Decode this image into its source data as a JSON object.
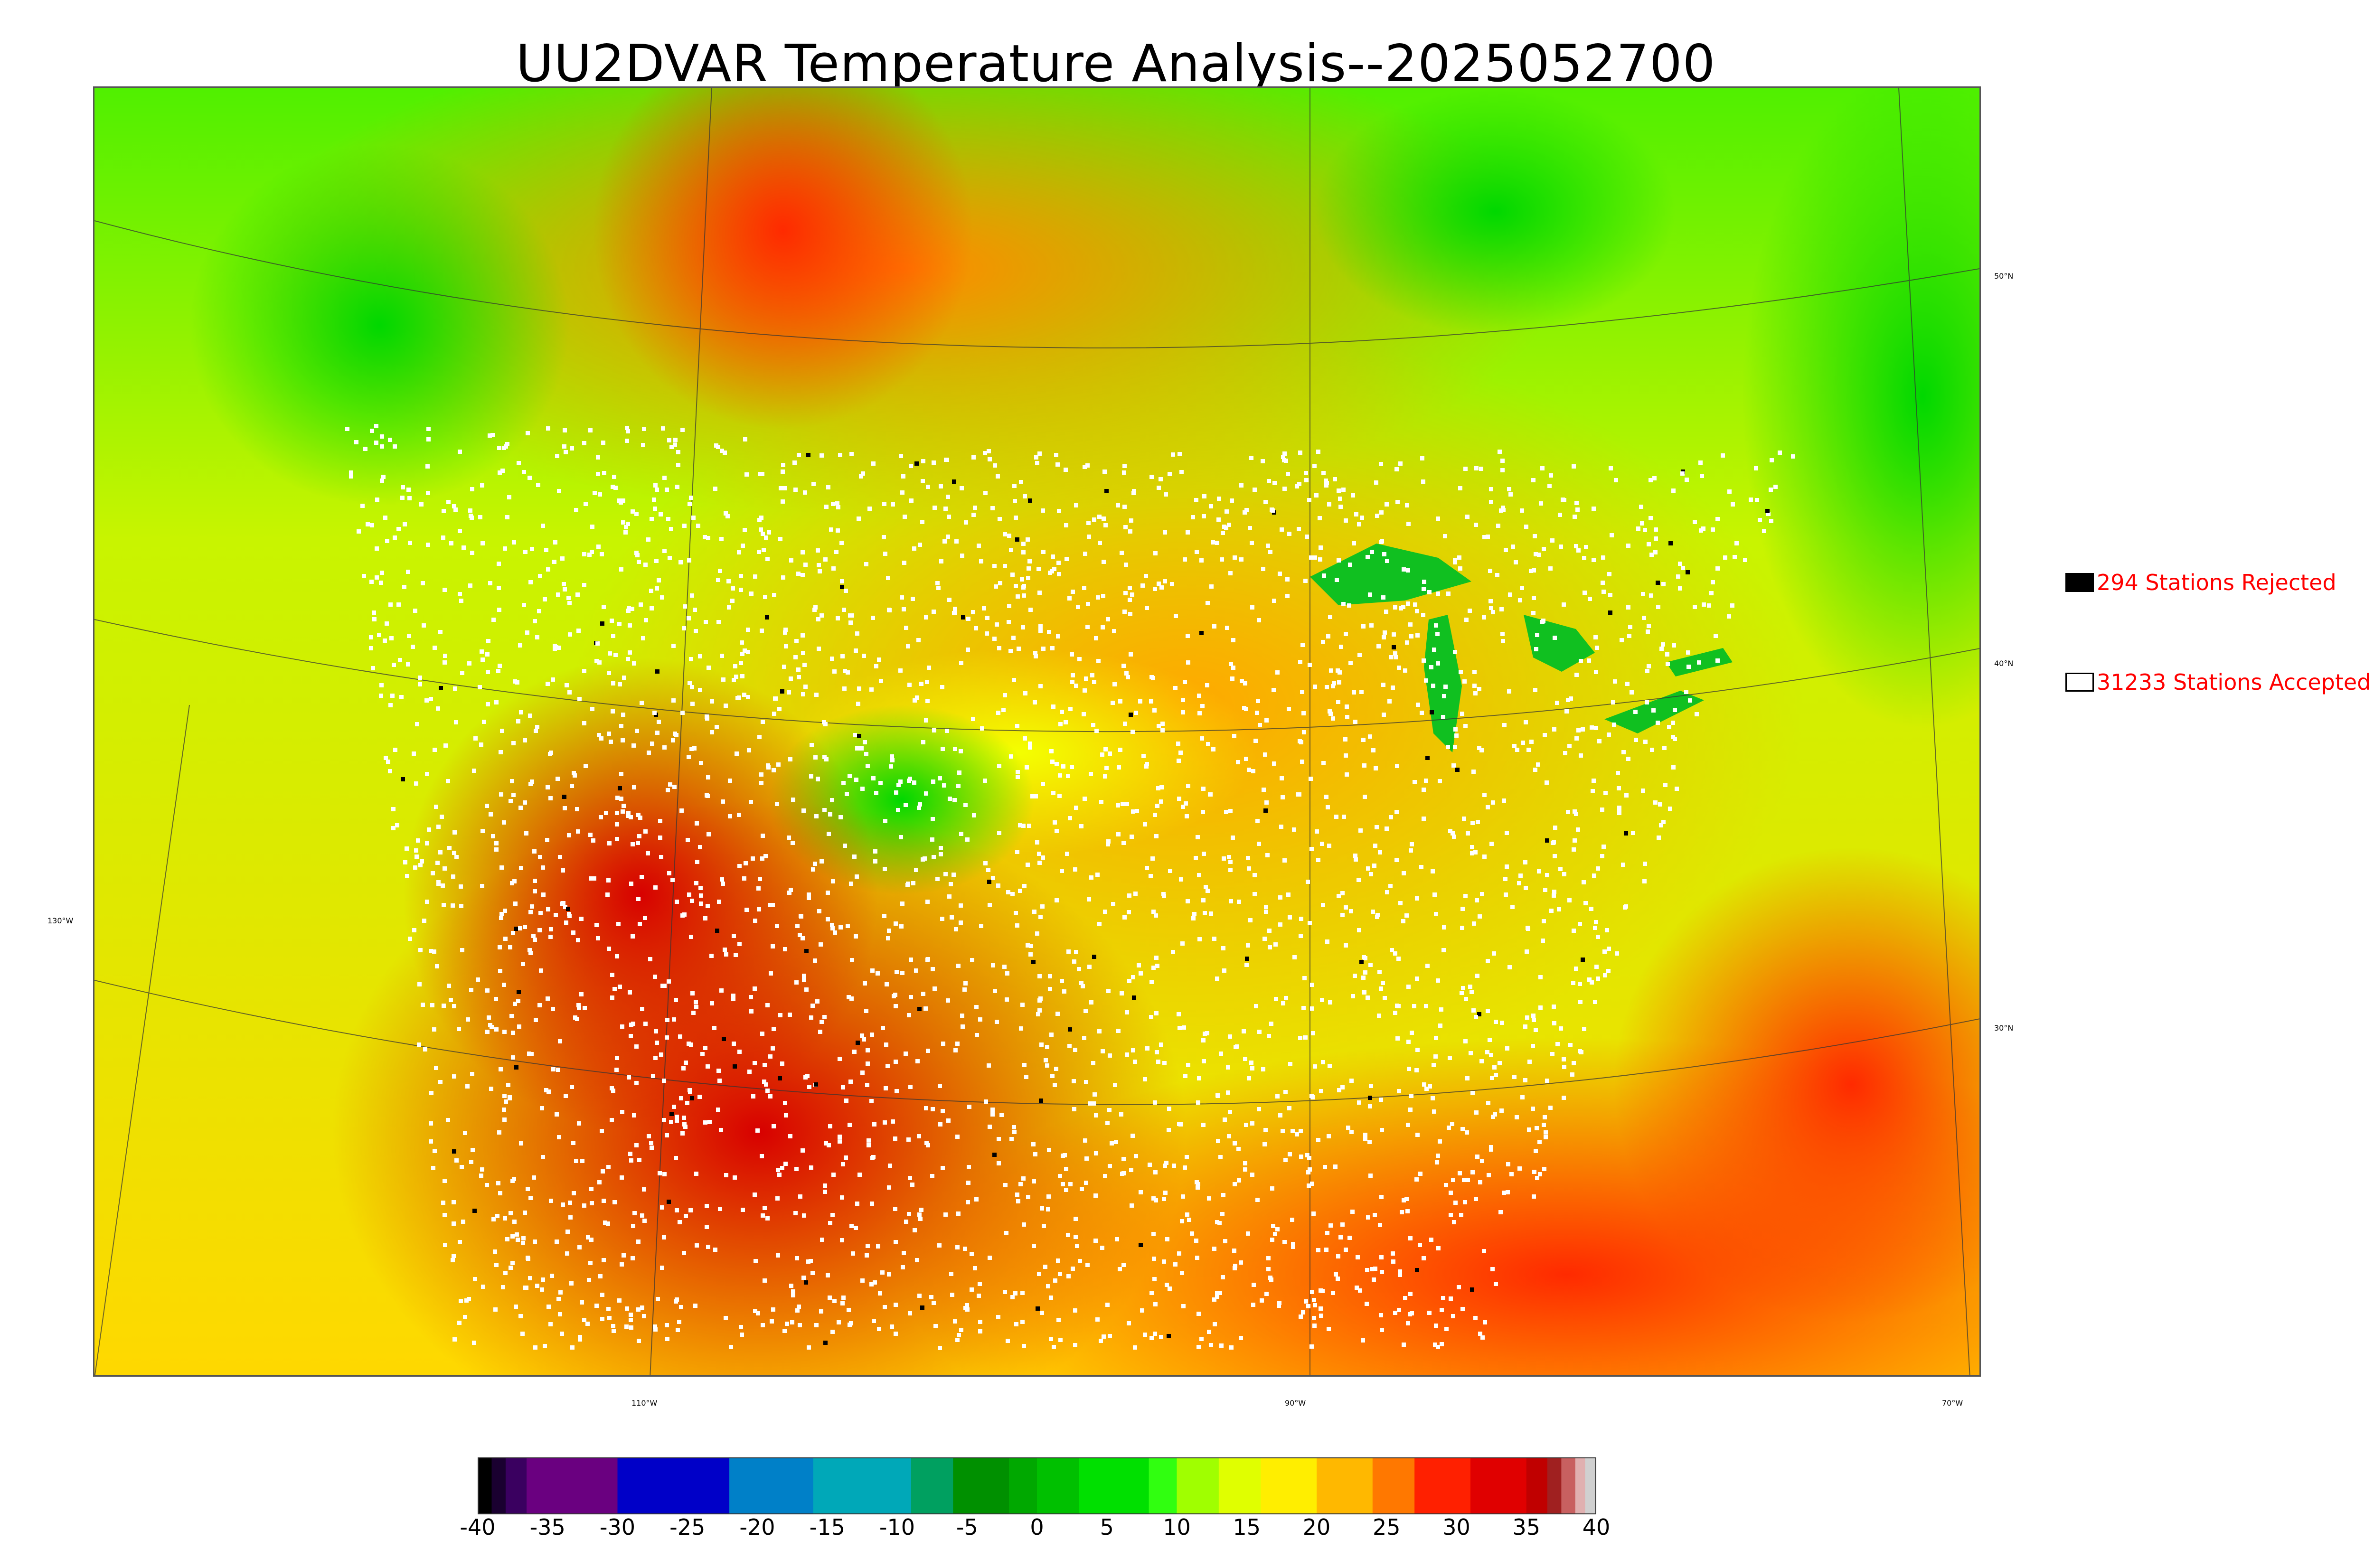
{
  "title": "UU2DVAR Temperature Analysis--2025052700",
  "legend": {
    "rejected": {
      "label": "294 Stations Rejected",
      "swatch": "#000000"
    },
    "accepted": {
      "label": "31233 Stations Accepted",
      "swatch": "#ffffff"
    }
  },
  "latitude_labels": [
    "50°N",
    "40°N",
    "30°N"
  ],
  "longitude_labels": [
    "130°W",
    "110°W",
    "90°W",
    "70°W"
  ],
  "colorbar": {
    "tick_labels": [
      "-40",
      "-35",
      "-30",
      "-25",
      "-20",
      "-15",
      "-10",
      "-5",
      "0",
      "5",
      "10",
      "15",
      "20",
      "25",
      "30",
      "35",
      "40"
    ],
    "range": [
      -40,
      40
    ],
    "bands": [
      {
        "from": -40,
        "to": -39,
        "color": "#000000"
      },
      {
        "from": -39,
        "to": -38,
        "color": "#1a0030"
      },
      {
        "from": -38,
        "to": -36.5,
        "color": "#3a0060"
      },
      {
        "from": -36.5,
        "to": -30,
        "color": "#6a0080"
      },
      {
        "from": -30,
        "to": -22,
        "color": "#0000c8"
      },
      {
        "from": -22,
        "to": -16,
        "color": "#0080c8"
      },
      {
        "from": -16,
        "to": -9,
        "color": "#00a8b8"
      },
      {
        "from": -9,
        "to": -6,
        "color": "#00a060"
      },
      {
        "from": -6,
        "to": -2,
        "color": "#009000"
      },
      {
        "from": -2,
        "to": 0,
        "color": "#00a800"
      },
      {
        "from": 0,
        "to": 3,
        "color": "#00c000"
      },
      {
        "from": 3,
        "to": 8,
        "color": "#00e000"
      },
      {
        "from": 8,
        "to": 10,
        "color": "#30ff10"
      },
      {
        "from": 10,
        "to": 13,
        "color": "#a0ff00"
      },
      {
        "from": 13,
        "to": 16,
        "color": "#e0ff00"
      },
      {
        "from": 16,
        "to": 20,
        "color": "#ffee00"
      },
      {
        "from": 20,
        "to": 24,
        "color": "#ffb800"
      },
      {
        "from": 24,
        "to": 27,
        "color": "#ff7800"
      },
      {
        "from": 27,
        "to": 31,
        "color": "#ff2000"
      },
      {
        "from": 31,
        "to": 35,
        "color": "#e00000"
      },
      {
        "from": 35,
        "to": 36.5,
        "color": "#c00000"
      },
      {
        "from": 36.5,
        "to": 37.5,
        "color": "#a02020"
      },
      {
        "from": 37.5,
        "to": 38.5,
        "color": "#c86060"
      },
      {
        "from": 38.5,
        "to": 39.2,
        "color": "#e0b0b0"
      },
      {
        "from": 39.2,
        "to": 40,
        "color": "#d0d0d0"
      }
    ]
  },
  "colors": {
    "ocean_north": "#e6f200",
    "ocean_south": "#ff3000",
    "canada_warm": "#ff9000",
    "hot_southwest": "#d40000",
    "cool_green": "#00d000",
    "lakes": "#10c020"
  }
}
